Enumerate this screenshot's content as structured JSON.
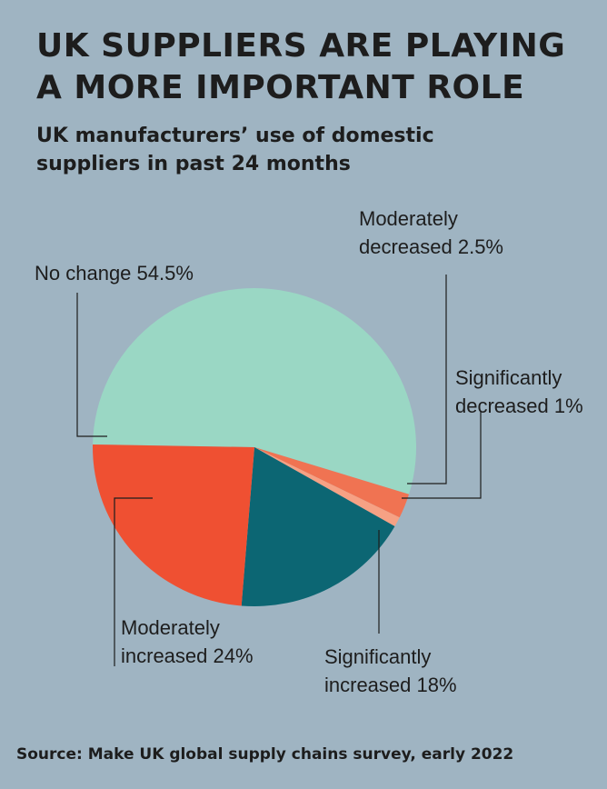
{
  "title": "UK SUPPLIERS ARE PLAYING\nA MORE IMPORTANT ROLE",
  "subtitle": "UK manufacturers’ use of domestic\nsuppliers in past 24 months",
  "source": "Source: Make UK global supply chains survey, early 2022",
  "chart_data": {
    "type": "pie",
    "title": "UK SUPPLIERS ARE PLAYING A MORE IMPORTANT ROLE",
    "subtitle": "UK manufacturers’ use of domestic suppliers in past 24 months",
    "unit": "%",
    "slices": [
      {
        "label": "No change",
        "value": 54.5,
        "color": "#9ad7c4"
      },
      {
        "label": "Moderately decreased",
        "value": 2.5,
        "color": "#f07352"
      },
      {
        "label": "Significantly decreased",
        "value": 1,
        "color": "#f6a184"
      },
      {
        "label": "Significantly increased",
        "value": 18,
        "color": "#0c6673"
      },
      {
        "label": "Moderately increased",
        "value": 24,
        "color": "#ef5032"
      }
    ],
    "data_labels": [
      {
        "lines": [
          "No change 54.5%"
        ]
      },
      {
        "lines": [
          "Moderately",
          "decreased 2.5%"
        ]
      },
      {
        "lines": [
          "Significantly",
          "decreased 1%"
        ]
      },
      {
        "lines": [
          "Significantly",
          "increased 18%"
        ]
      },
      {
        "lines": [
          "Moderately",
          "increased 24%"
        ]
      }
    ]
  }
}
